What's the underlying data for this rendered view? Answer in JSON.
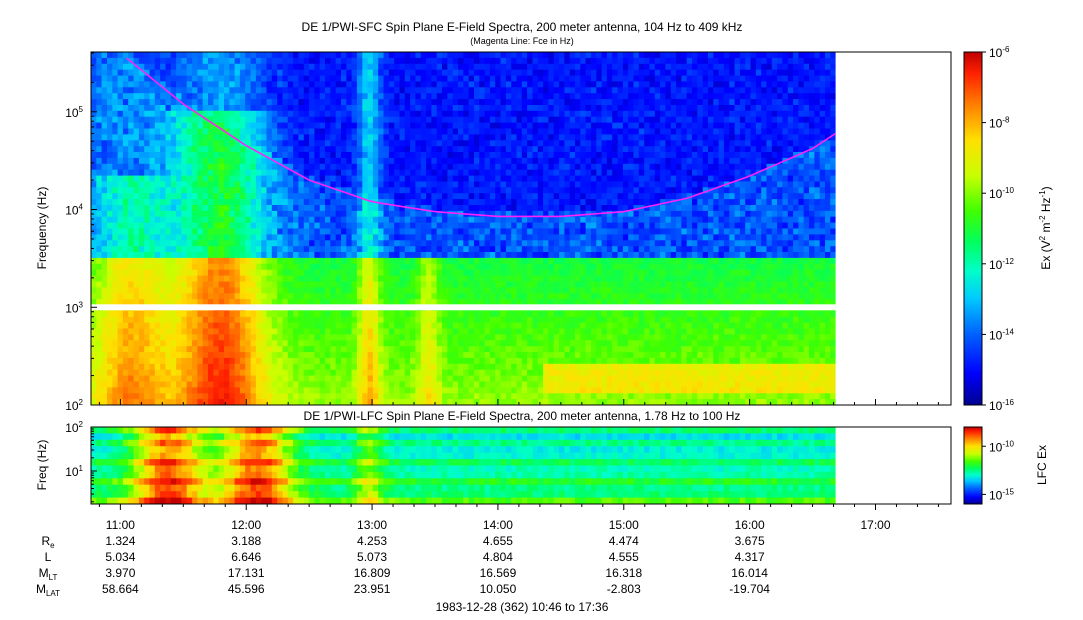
{
  "title": {
    "main": "DE 1/PWI-SFC  Spin Plane E-Field Spectra, 200 meter antenna, 104 Hz to 409 kHz",
    "subtitle": "(Magenta Line: Fce in Hz)",
    "lfc": "DE 1/PWI-LFC  Spin Plane E-Field Spectra, 200 meter antenna, 1.78 Hz to 100 Hz"
  },
  "footer": "1983-12-28 (362) 10:46 to 17:36",
  "colors": {
    "fce_line": "#ff20ff",
    "colormap": [
      "#000090",
      "#0000ff",
      "#0060ff",
      "#00c8ff",
      "#00ffc8",
      "#00ff60",
      "#40ff00",
      "#c8ff00",
      "#ffe000",
      "#ff8000",
      "#ff2000",
      "#c00000"
    ]
  },
  "orbit_table": {
    "labels": [
      {
        "main": "R",
        "sub": "e"
      },
      {
        "main": "L",
        "sub": ""
      },
      {
        "main": "M",
        "sub": "LT"
      },
      {
        "main": "M",
        "sub": "LAT"
      }
    ],
    "columns": [
      {
        "time": "11:00",
        "values": [
          "1.324",
          "5.034",
          "3.970",
          "58.664"
        ]
      },
      {
        "time": "12:00",
        "values": [
          "3.188",
          "6.646",
          "17.131",
          "45.596"
        ]
      },
      {
        "time": "13:00",
        "values": [
          "4.253",
          "5.073",
          "16.809",
          "23.951"
        ]
      },
      {
        "time": "14:00",
        "values": [
          "4.655",
          "4.804",
          "16.569",
          "10.050"
        ]
      },
      {
        "time": "15:00",
        "values": [
          "4.474",
          "4.555",
          "16.318",
          "-2.803"
        ]
      },
      {
        "time": "16:00",
        "values": [
          "3.675",
          "4.317",
          "16.014",
          "-19.704"
        ]
      },
      {
        "time": "17:00",
        "values": [
          "",
          "",
          "",
          ""
        ]
      }
    ]
  },
  "chart_data": [
    {
      "type": "heatmap",
      "name": "SFC",
      "title": "DE 1/PWI-SFC  Spin Plane E-Field Spectra, 200 meter antenna, 104 Hz to 409 kHz",
      "ylabel": "Frequency (Hz)",
      "y_scale": "log",
      "ylim": [
        100,
        409000
      ],
      "y_ticks": [
        100,
        1000,
        10000,
        100000
      ],
      "xlim": [
        "10:46",
        "17:36"
      ],
      "data_extent": [
        "10:46",
        "16:41"
      ],
      "colorbar": {
        "label": "Ex (V2 m-2 Hz-1)",
        "scale": "log",
        "range": [
          1e-16,
          1e-06
        ],
        "ticks": [
          1e-16,
          1e-14,
          1e-12,
          1e-10,
          1e-08,
          1e-06
        ]
      },
      "fce_line": {
        "name": "Fce in Hz",
        "times": [
          "11:00",
          "11:30",
          "12:00",
          "12:30",
          "13:00",
          "13:30",
          "14:00",
          "14:30",
          "15:00",
          "15:30",
          "16:00",
          "16:30",
          "16:41"
        ],
        "values": [
          400000,
          120000,
          45000,
          20000,
          12000,
          9500,
          8500,
          8500,
          9500,
          13000,
          22000,
          42000,
          60000
        ]
      }
    },
    {
      "type": "heatmap",
      "name": "LFC",
      "title": "DE 1/PWI-LFC  Spin Plane E-Field Spectra, 200 meter antenna, 1.78 Hz to 100 Hz",
      "ylabel": "Freq (Hz)",
      "y_scale": "log",
      "ylim": [
        1.78,
        100
      ],
      "y_ticks": [
        10,
        100
      ],
      "xlim": [
        "10:46",
        "17:36"
      ],
      "data_extent": [
        "10:46",
        "16:41"
      ],
      "colorbar": {
        "label": "LFC Ex",
        "scale": "log",
        "range": [
          1e-16,
          1e-08
        ],
        "ticks": [
          1e-15,
          1e-10
        ]
      }
    }
  ]
}
